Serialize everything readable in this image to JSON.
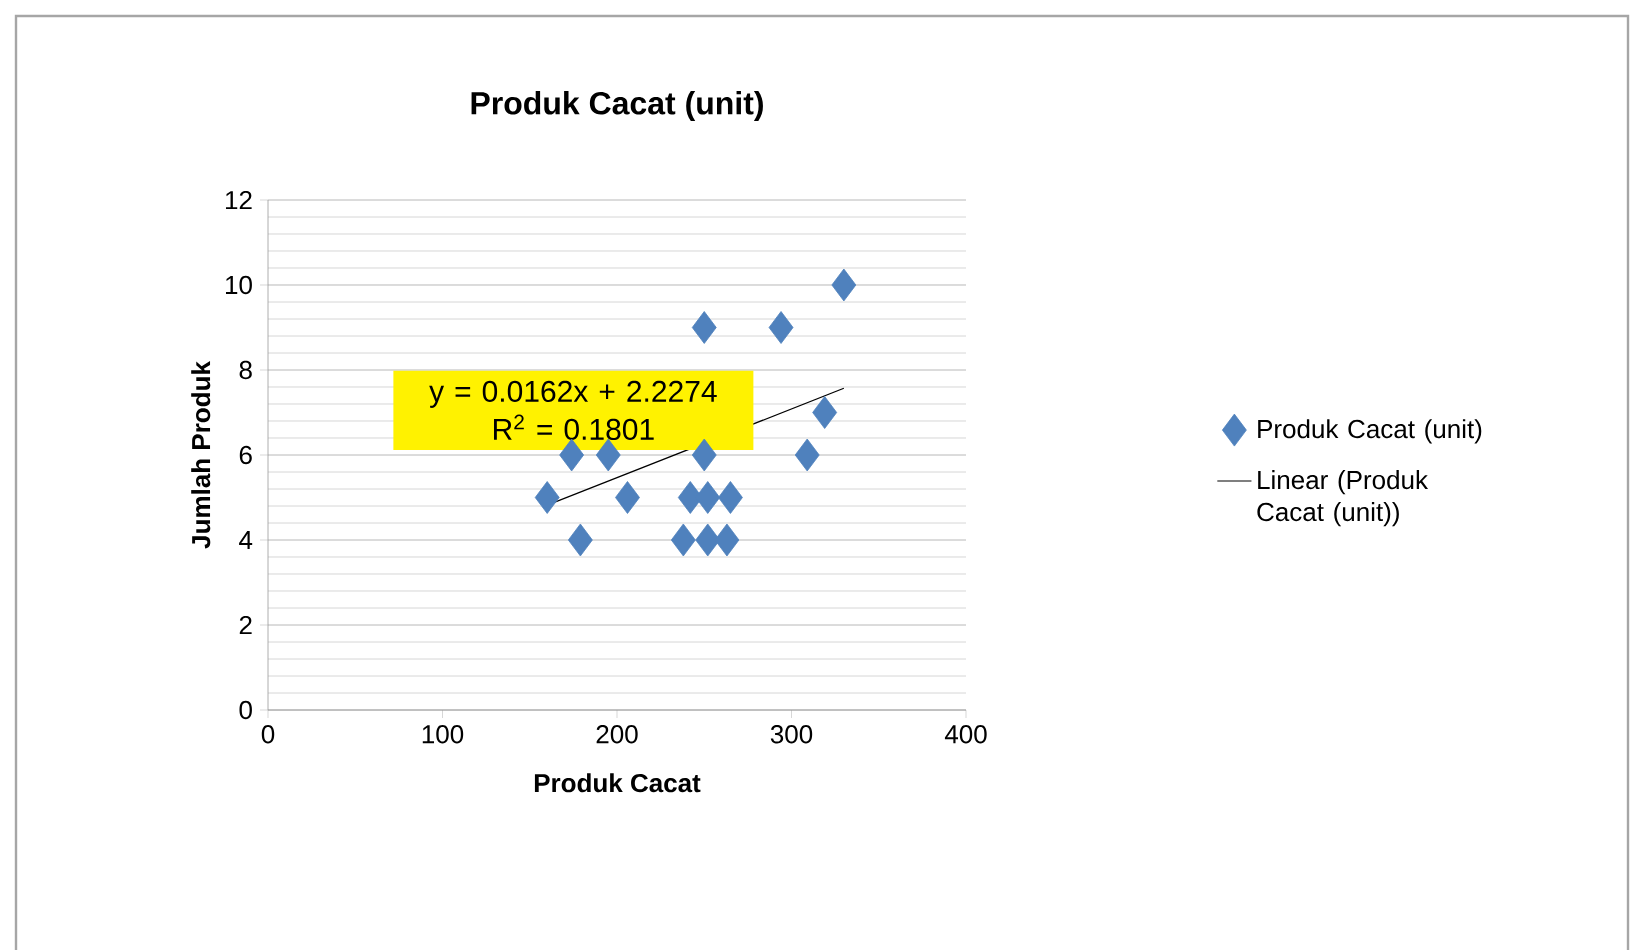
{
  "chart_data": {
    "type": "scatter",
    "title": "Produk Cacat (unit)",
    "xlabel": "Produk Cacat",
    "ylabel": "Jumlah Produk",
    "xlim": [
      0,
      400
    ],
    "xticks": [
      0,
      100,
      200,
      300,
      400
    ],
    "ylim": [
      0,
      12
    ],
    "yticks": [
      0,
      2,
      4,
      6,
      8,
      10,
      12
    ],
    "grid": "y",
    "legend": "right",
    "series": [
      {
        "name": "Produk Cacat (unit)",
        "marker": "diamond",
        "color": "#4f81bd",
        "x": [
          160,
          174,
          179,
          195,
          206,
          238,
          242,
          250,
          250,
          252,
          252,
          263,
          265,
          294,
          309,
          319,
          330
        ],
        "values": [
          5,
          6,
          4,
          6,
          5,
          4,
          5,
          6,
          9,
          4,
          5,
          4,
          5,
          9,
          6,
          7,
          10
        ]
      },
      {
        "name": "Linear (Produk Cacat (unit))",
        "type": "line",
        "marker": "none",
        "color": "#000000",
        "x": [
          160,
          330
        ],
        "values": [
          4.82,
          7.57
        ]
      }
    ],
    "annotations": [
      "y = 0.0162x + 2.2274",
      "R$^{2}$ = 0.1801"
    ]
  }
}
